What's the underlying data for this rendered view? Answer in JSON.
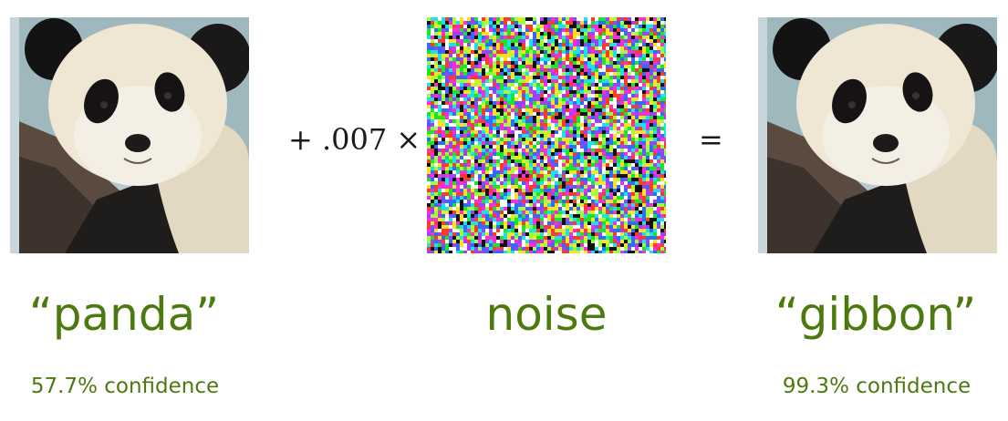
{
  "figure": {
    "left_image": {
      "label": "“panda”",
      "confidence": "57.7% confidence"
    },
    "operator_add": "+ .007 ×",
    "noise_image": {
      "label": "noise"
    },
    "operator_equals": "=",
    "right_image": {
      "label": "“gibbon”",
      "confidence": "99.3% confidence"
    }
  },
  "colors": {
    "label_green": "#4d7a0f",
    "operator_text": "#1a1a1a",
    "noise_palette": [
      "#ff2bd6",
      "#19e62b",
      "#2f6bff",
      "#ffffff",
      "#ffe21a",
      "#18e3e8",
      "#ff3a2a",
      "#a040ff",
      "#111111",
      "#9cff3c"
    ]
  }
}
